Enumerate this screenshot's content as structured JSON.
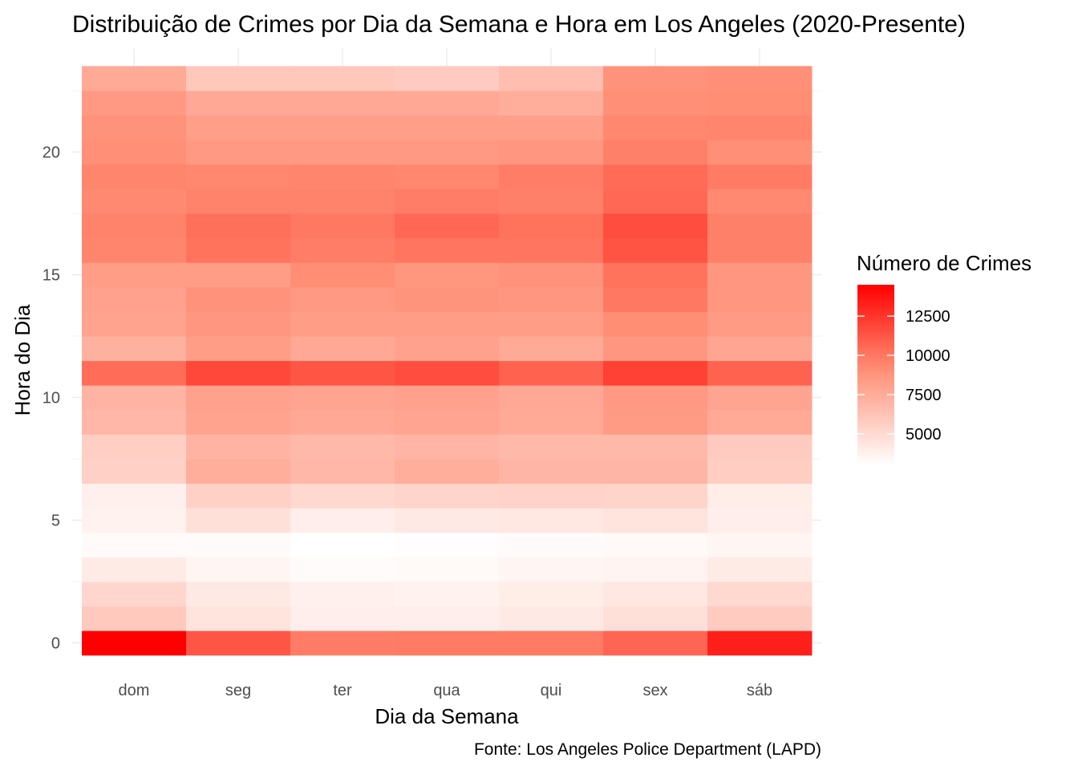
{
  "chart_data": {
    "type": "heatmap",
    "title": "Distribuição de Crimes por Dia da Semana e Hora em Los Angeles (2020-Presente)",
    "xlabel": "Dia da Semana",
    "ylabel": "Hora do Dia",
    "caption": "Fonte: Los Angeles Police Department (LAPD)",
    "x_categories": [
      "dom",
      "seg",
      "ter",
      "qua",
      "qui",
      "sex",
      "sáb"
    ],
    "y_hours": [
      0,
      1,
      2,
      3,
      4,
      5,
      6,
      7,
      8,
      9,
      10,
      11,
      12,
      13,
      14,
      15,
      16,
      17,
      18,
      19,
      20,
      21,
      22,
      23
    ],
    "y_ticks": [
      0,
      5,
      10,
      15,
      20
    ],
    "ylim": [
      0,
      23
    ],
    "grid": true,
    "legend": {
      "title": "Número de Crimes",
      "position": "right",
      "ticks": [
        5000,
        7500,
        10000,
        12500
      ],
      "range": [
        3000,
        14500
      ],
      "color_low": "#ffffff",
      "color_high": "#ff0000"
    },
    "values": [
      [
        14500,
        11300,
        9800,
        9900,
        9900,
        10700,
        13300
      ],
      [
        5900,
        4500,
        3900,
        3900,
        4200,
        4700,
        5800
      ],
      [
        5200,
        4200,
        3800,
        3700,
        4000,
        4300,
        5100
      ],
      [
        4100,
        3500,
        3200,
        3300,
        3500,
        3600,
        4100
      ],
      [
        3200,
        3200,
        3000,
        3100,
        3200,
        3300,
        3500
      ],
      [
        3700,
        4700,
        3900,
        4200,
        4300,
        4500,
        3900
      ],
      [
        3800,
        5500,
        5100,
        5300,
        5400,
        5300,
        4000
      ],
      [
        5500,
        7400,
        6900,
        7400,
        7000,
        7000,
        5700
      ],
      [
        5600,
        7100,
        6800,
        7000,
        6800,
        6800,
        5800
      ],
      [
        6900,
        8000,
        7700,
        7900,
        7600,
        8400,
        7600
      ],
      [
        7100,
        8100,
        7900,
        8100,
        7700,
        8500,
        7900
      ],
      [
        10400,
        11800,
        11300,
        11600,
        10800,
        12100,
        10800
      ],
      [
        7200,
        8300,
        7700,
        8100,
        7600,
        8600,
        7800
      ],
      [
        8000,
        8600,
        8300,
        8300,
        8300,
        9100,
        8400
      ],
      [
        8100,
        8900,
        8500,
        8800,
        8600,
        10000,
        8600
      ],
      [
        8300,
        8300,
        9100,
        8700,
        8900,
        10200,
        8600
      ],
      [
        9500,
        10200,
        9800,
        10100,
        10100,
        11400,
        9700
      ],
      [
        9600,
        10300,
        10000,
        10600,
        10200,
        11600,
        9700
      ],
      [
        9300,
        9600,
        9600,
        9800,
        9700,
        10600,
        9300
      ],
      [
        9500,
        9400,
        9500,
        9400,
        9800,
        10500,
        9900
      ],
      [
        9000,
        8500,
        8500,
        8500,
        8600,
        9700,
        9000
      ],
      [
        8900,
        8200,
        8200,
        8200,
        8200,
        9400,
        9500
      ],
      [
        8500,
        7700,
        7700,
        7700,
        7400,
        9000,
        9100
      ],
      [
        7600,
        6000,
        6000,
        5800,
        6500,
        8900,
        9000
      ]
    ]
  }
}
